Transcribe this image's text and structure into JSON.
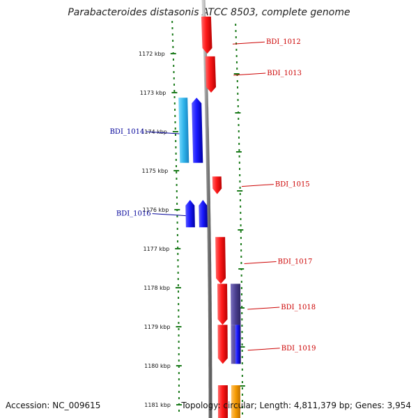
{
  "title": "Parabacteroides distasonis ATCC 8503, complete genome",
  "accession": "Accession: NC_009615",
  "topology": "Topology: circular; Length: 4,811,379 bp; Genes: 3,954",
  "kbp_ticks": [
    {
      "label": "1172 kbp",
      "kbp": 1172
    },
    {
      "label": "1173 kbp",
      "kbp": 1173
    },
    {
      "label": "1174 kbp",
      "kbp": 1174
    },
    {
      "label": "1175 kbp",
      "kbp": 1175
    },
    {
      "label": "1176 kbp",
      "kbp": 1176
    },
    {
      "label": "1177 kbp",
      "kbp": 1177
    },
    {
      "label": "1178 kbp",
      "kbp": 1178
    },
    {
      "label": "1179 kbp",
      "kbp": 1179
    },
    {
      "label": "1180 kbp",
      "kbp": 1180
    },
    {
      "label": "1181 kbp",
      "kbp": 1181
    }
  ],
  "genes": [
    {
      "name": "BDI_1012",
      "strand": "+",
      "color": "#e00000",
      "labeled": true
    },
    {
      "name": "BDI_1013",
      "strand": "+",
      "color": "#e00000",
      "labeled": true
    },
    {
      "name": "BDI_1014",
      "strand": "-",
      "color": "#1010e0",
      "labeled": true
    },
    {
      "name": "BDI_1015",
      "strand": "+",
      "color": "#e00000",
      "labeled": true
    },
    {
      "name": "BDI_1016",
      "strand": "-",
      "color": "#1010e0",
      "labeled": true
    },
    {
      "name": "BDI_1017",
      "strand": "+",
      "color": "#e00000",
      "labeled": true
    },
    {
      "name": "BDI_1018",
      "strand": "+",
      "color": "#e00000",
      "labeled": true
    },
    {
      "name": "BDI_1019",
      "strand": "+",
      "color": "#e00000",
      "labeled": true
    }
  ],
  "colors": {
    "forward_gene": "#e00000",
    "reverse_gene": "#1010e0",
    "reverse_gene_light": "#29b6e8",
    "overlap_gene": "#4a3f8f",
    "orange_gene": "#f59a00",
    "forward_label": "#cc0000",
    "reverse_label": "#000099",
    "tick_mark": "#1a7a1a",
    "backbone": "#8c8c8c"
  }
}
